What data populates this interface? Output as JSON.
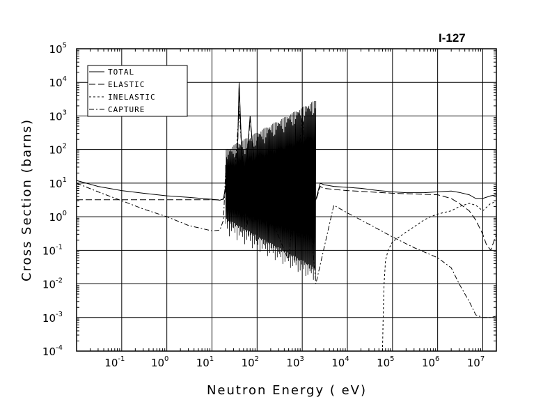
{
  "chart_data": {
    "type": "line",
    "title": "I-127",
    "xlabel": "Neutron Energy ( eV)",
    "ylabel": "Cross Section (barns)",
    "xscale": "log",
    "yscale": "log",
    "xlim": [
      0.01,
      20000000
    ],
    "ylim": [
      0.0001,
      100000
    ],
    "grid": true,
    "legend_position": "top-left",
    "x_ticks": [
      {
        "base": "10",
        "exp": "-1",
        "value": 0.1
      },
      {
        "base": "10",
        "exp": "0",
        "value": 1
      },
      {
        "base": "10",
        "exp": "1",
        "value": 10
      },
      {
        "base": "10",
        "exp": "2",
        "value": 100
      },
      {
        "base": "10",
        "exp": "3",
        "value": 1000
      },
      {
        "base": "10",
        "exp": "4",
        "value": 10000
      },
      {
        "base": "10",
        "exp": "5",
        "value": 100000
      },
      {
        "base": "10",
        "exp": "6",
        "value": 1000000
      },
      {
        "base": "10",
        "exp": "7",
        "value": 10000000
      }
    ],
    "y_ticks": [
      {
        "base": "10",
        "exp": "5",
        "value": 100000
      },
      {
        "base": "10",
        "exp": "4",
        "value": 10000
      },
      {
        "base": "10",
        "exp": "3",
        "value": 1000
      },
      {
        "base": "10",
        "exp": "2",
        "value": 100
      },
      {
        "base": "10",
        "exp": "1",
        "value": 10
      },
      {
        "base": "10",
        "exp": "0",
        "value": 1
      },
      {
        "base": "10",
        "exp": "-1",
        "value": 0.1
      },
      {
        "base": "10",
        "exp": "-2",
        "value": 0.01
      },
      {
        "base": "10",
        "exp": "-3",
        "value": 0.001
      },
      {
        "base": "10",
        "exp": "-4",
        "value": 0.0001
      }
    ],
    "series": [
      {
        "name": "TOTAL",
        "dash": "solid",
        "x": [
          0.01,
          0.03,
          0.1,
          0.3,
          1,
          3,
          10,
          15,
          18,
          20,
          21,
          22,
          25,
          30,
          35,
          40,
          50,
          70,
          100,
          150,
          200,
          250,
          300,
          500,
          1000,
          2000,
          2500,
          3000,
          5000,
          10000,
          20000,
          50000,
          100000,
          200000,
          500000,
          1000000,
          2000000,
          3000000,
          5000000,
          7000000,
          10000000,
          15000000,
          20000000
        ],
        "y": [
          12,
          8,
          6,
          5,
          4.2,
          3.8,
          3.3,
          3.1,
          3.4,
          8,
          60,
          8,
          3.5,
          12,
          5,
          10000,
          3,
          1000,
          3.5,
          4.5,
          3.8,
          3.6,
          3.5,
          3.4,
          3.3,
          3.2,
          10,
          9,
          8,
          7.5,
          7,
          6,
          5.5,
          5.2,
          5.2,
          5.5,
          5.8,
          5.3,
          4.5,
          3.5,
          3.5,
          4.2,
          4.5
        ]
      },
      {
        "name": "ELASTIC",
        "dash": "long-dash",
        "x": [
          0.01,
          0.1,
          1,
          10,
          15,
          18,
          20,
          21,
          22,
          25,
          30,
          35,
          40,
          50,
          70,
          100,
          150,
          200,
          300,
          500,
          1000,
          2000,
          2500,
          3000,
          5000,
          10000,
          100000,
          1000000,
          2000000,
          3000000,
          5000000,
          7000000,
          10000000,
          12000000,
          15000000,
          20000000
        ],
        "y": [
          3.2,
          3.2,
          3.2,
          3.2,
          3.2,
          3.3,
          6,
          50,
          6,
          3,
          10,
          4,
          8000,
          2.5,
          800,
          3.2,
          3.5,
          3.2,
          3.1,
          3,
          3,
          3,
          8,
          7,
          6.5,
          6,
          5,
          4.5,
          3.5,
          2.5,
          1.5,
          0.8,
          0.3,
          0.15,
          0.1,
          0.3
        ]
      },
      {
        "name": "INELASTIC",
        "dash": "dash",
        "x": [
          60000,
          62000,
          65000,
          70000,
          80000,
          100000,
          200000,
          300000,
          500000,
          700000,
          1000000,
          2000000,
          3000000,
          5000000,
          7000000,
          10000000,
          15000000,
          20000000
        ],
        "y": [
          0.0001,
          0.001,
          0.01,
          0.05,
          0.1,
          0.18,
          0.35,
          0.5,
          0.8,
          1.0,
          1.2,
          1.5,
          2.0,
          2.5,
          2.2,
          1.5,
          2.5,
          2.8
        ]
      },
      {
        "name": "CAPTURE",
        "dash": "dash-dot",
        "x": [
          0.01,
          0.03,
          0.1,
          0.3,
          1,
          3,
          10,
          15,
          18,
          20,
          22,
          25,
          30,
          40,
          60,
          100,
          200,
          500,
          1000,
          2000,
          5000,
          10000,
          30000,
          100000,
          300000,
          1000000,
          2000000,
          3000000,
          5000000,
          7000000,
          10000000,
          15000000,
          20000000
        ],
        "y": [
          10,
          5.5,
          3,
          1.7,
          1,
          0.55,
          0.38,
          0.4,
          0.8,
          20,
          4,
          2,
          5,
          1500,
          0.5,
          80,
          1,
          0.05,
          1000,
          0.01,
          2.2,
          1.3,
          0.6,
          0.25,
          0.12,
          0.06,
          0.03,
          0.01,
          0.003,
          0.0012,
          0.001,
          0.001,
          0.0011
        ]
      }
    ],
    "resonance_band": {
      "x_range": [
        20,
        2000
      ],
      "upper": [
        100,
        3000
      ],
      "lower": [
        0.3,
        0.01
      ]
    }
  }
}
